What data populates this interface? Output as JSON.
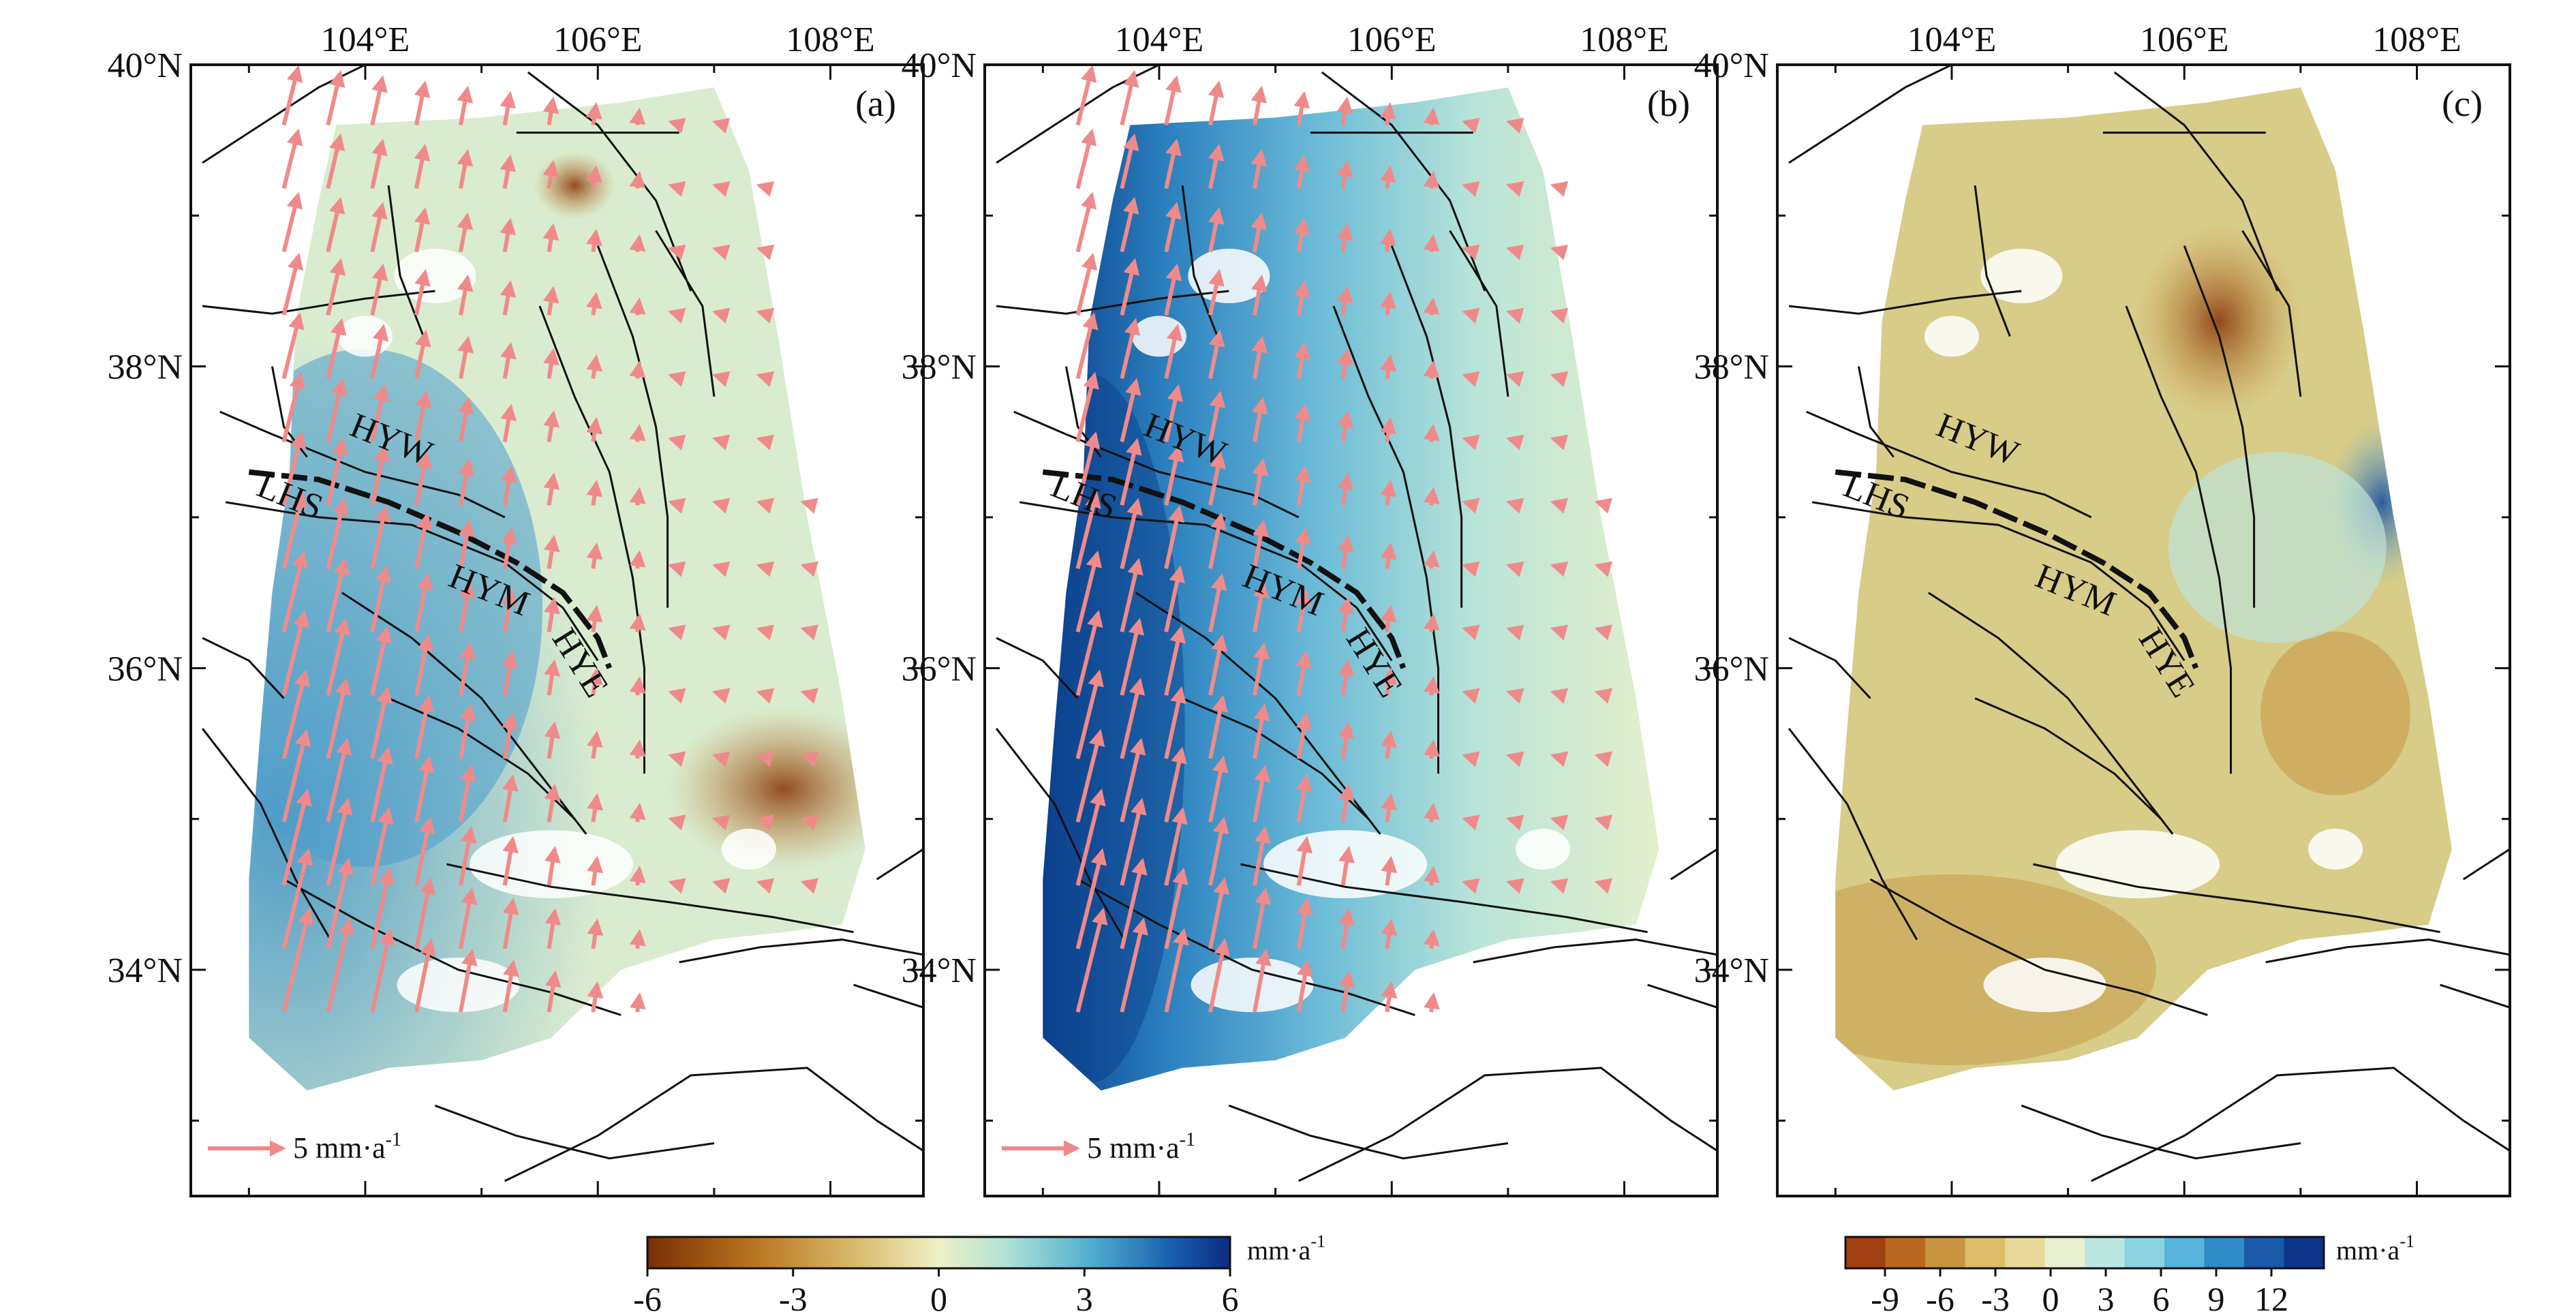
{
  "figure": {
    "panels": [
      {
        "id": "a",
        "label": "(a)",
        "field": "rainbow",
        "arrows": true,
        "scale_label": "5 mm·a",
        "scale_sup": "-1"
      },
      {
        "id": "b",
        "label": "(b)",
        "field": "smooth",
        "arrows": true,
        "scale_label": "5 mm·a",
        "scale_sup": "-1"
      },
      {
        "id": "c",
        "label": "(c)",
        "field": "residual",
        "arrows": false
      }
    ],
    "x_ticks": [
      "104°E",
      "106°E",
      "108°E"
    ],
    "y_ticks": [
      "40°N",
      "38°N",
      "36°N",
      "34°N"
    ],
    "fault_labels": [
      "HYW",
      "LHS",
      "HYM",
      "HYE"
    ],
    "colorbars": [
      {
        "id": "continuous",
        "ticks": [
          "-6",
          "-3",
          "0",
          "3",
          "6"
        ],
        "unit": "mm·a",
        "unit_sup": "-1"
      },
      {
        "id": "discrete",
        "ticks": [
          "-9",
          "-6",
          "-3",
          "0",
          "3",
          "6",
          "9",
          "12"
        ],
        "unit": "mm·a",
        "unit_sup": "-1"
      }
    ],
    "colors": {
      "arrow": "#f08a8a",
      "fault": "#111111",
      "continuous_ramp": [
        "#7a2e06",
        "#b8741e",
        "#d9bc6e",
        "#eef0c6",
        "#aee0d6",
        "#52aed0",
        "#1a5fae",
        "#0b2a80"
      ],
      "discrete_ramp": [
        "#a04010",
        "#b86820",
        "#c99340",
        "#dbbd6a",
        "#e8d89a",
        "#e8f0d0",
        "#bce6e0",
        "#8cd2e0",
        "#58b4da",
        "#2f8ac6",
        "#1a5aa8",
        "#0d3688"
      ]
    }
  }
}
